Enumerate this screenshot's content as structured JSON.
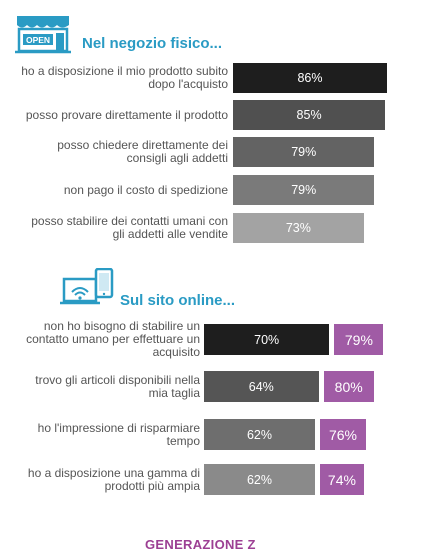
{
  "store_section": {
    "icon": "store-open-icon",
    "icon_text": "OPEN",
    "title": "Nel negozio fisico...",
    "rows": [
      {
        "label": "ho a disposizione il mio prodotto subito dopo l'acquisto",
        "value": 86,
        "value_label": "86%",
        "color": "#1e1e1e"
      },
      {
        "label": "posso provare direttamente il prodotto",
        "value": 85,
        "value_label": "85%",
        "color": "#505050"
      },
      {
        "label": "posso chiedere direttamente dei consigli agli addetti",
        "value": 79,
        "value_label": "79%",
        "color": "#636363"
      },
      {
        "label": "non pago il costo di spedizione",
        "value": 79,
        "value_label": "79%",
        "color": "#7a7a7a"
      },
      {
        "label": "posso stabilire dei contatti umani con gli addetti alle vendite",
        "value": 73,
        "value_label": "73%",
        "color": "#a3a3a3"
      }
    ]
  },
  "online_section": {
    "icon": "devices-icon",
    "title": "Sul sito online...",
    "rows": [
      {
        "label": "non ho bisogno di stabilire un contatto umano per effettuare un acquisito",
        "value": 70,
        "value_label": "70%",
        "color": "#1e1e1e",
        "genz_value": 79,
        "genz_label": "79%"
      },
      {
        "label": "trovo gli articoli disponibili nella mia taglia",
        "value": 64,
        "value_label": "64%",
        "color": "#555555",
        "genz_value": 80,
        "genz_label": "80%"
      },
      {
        "label": "ho l'impressione di risparmiare tempo",
        "value": 62,
        "value_label": "62%",
        "color": "#6e6e6e",
        "genz_value": 76,
        "genz_label": "76%"
      },
      {
        "label": "ho a disposizione una gamma di prodotti più ampia",
        "value": 62,
        "value_label": "62%",
        "color": "#8a8a8a",
        "genz_value": 74,
        "genz_label": "74%"
      }
    ]
  },
  "footer": {
    "label": "GENERAZIONE Z"
  },
  "colors": {
    "accent_blue": "#2a9bc4",
    "genz_purple": "#a05ba5",
    "footer_purple": "#9c3f93"
  },
  "chart_data": {
    "type": "bar",
    "orientation": "horizontal",
    "unit": "%",
    "sections": [
      {
        "title": "Nel negozio fisico...",
        "categories": [
          "ho a disposizione il mio prodotto subito dopo l'acquisto",
          "posso provare direttamente il prodotto",
          "posso chiedere direttamente dei consigli agli addetti",
          "non pago il costo di spedizione",
          "posso stabilire dei contatti umani con gli addetti alle vendite"
        ],
        "series": [
          {
            "values": [
              86,
              85,
              79,
              79,
              73
            ]
          }
        ]
      },
      {
        "title": "Sul sito online...",
        "categories": [
          "non ho bisogno di stabilire un contatto umano per effettuare un acquisito",
          "trovo gli articoli disponibili nella mia taglia",
          "ho l'impressione di risparmiare tempo",
          "ho a disposizione una gamma di prodotti più ampia"
        ],
        "series": [
          {
            "values": [
              70,
              64,
              62,
              62
            ]
          },
          {
            "name": "GENERAZIONE Z",
            "values": [
              79,
              80,
              76,
              74
            ]
          }
        ]
      }
    ]
  }
}
